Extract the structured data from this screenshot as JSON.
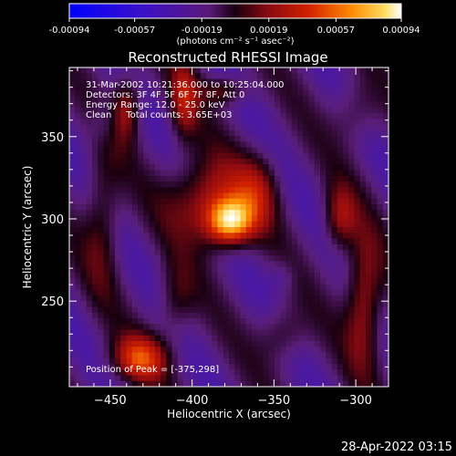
{
  "chart_data": {
    "type": "heatmap",
    "title": "Reconstructed RHESSI Image",
    "xlabel": "Heliocentric X (arcsec)",
    "ylabel": "Heliocentric Y (arcsec)",
    "xlim": [
      -475,
      -280
    ],
    "ylim": [
      198,
      392
    ],
    "x_ticks": [
      -450,
      -400,
      -350,
      -300
    ],
    "y_ticks": [
      250,
      300,
      350
    ],
    "colorbar": {
      "min": -0.00094,
      "max": 0.00094,
      "ticks": [
        "-0.00094",
        "-0.00057",
        "-0.00019",
        "0.00019",
        "0.00057",
        "0.00094"
      ],
      "unit_label": "(photons cm⁻² s⁻¹ asec⁻²)"
    },
    "annotations": {
      "time_range": "31-Mar-2002 10:21:36.000 to 10:25:04.000",
      "detectors": "Detectors: 3F 4F 5F 6F 7F 8F, Att 0",
      "energy_range": "Energy Range: 12.0 - 25.0 keV",
      "method_counts": "Clean     Total counts: 3.65E+03",
      "peak": "Position of Peak = [-375,298]"
    },
    "peak_position": [
      -375,
      298
    ],
    "sources": [
      {
        "x": -377,
        "y": 298,
        "sx": 10,
        "sy": 10,
        "amp": 1.0
      },
      {
        "x": -392,
        "y": 312,
        "sx": 16,
        "sy": 18,
        "amp": 0.55
      },
      {
        "x": -360,
        "y": 318,
        "sx": 10,
        "sy": 16,
        "amp": 0.4
      },
      {
        "x": -440,
        "y": 368,
        "sx": 6,
        "sy": 14,
        "amp": 0.5
      },
      {
        "x": -405,
        "y": 372,
        "sx": 6,
        "sy": 18,
        "amp": 0.45
      },
      {
        "x": -380,
        "y": 378,
        "sx": 10,
        "sy": 6,
        "amp": 0.4
      },
      {
        "x": -432,
        "y": 215,
        "sx": 12,
        "sy": 10,
        "amp": 0.65
      },
      {
        "x": -295,
        "y": 250,
        "sx": 8,
        "sy": 28,
        "amp": 0.55
      },
      {
        "x": -310,
        "y": 300,
        "sx": 7,
        "sy": 14,
        "amp": 0.45
      },
      {
        "x": -455,
        "y": 300,
        "sx": 8,
        "sy": 30,
        "amp": 0.35
      },
      {
        "x": -345,
        "y": 230,
        "sx": 10,
        "sy": 12,
        "amp": 0.3
      },
      {
        "x": -410,
        "y": 250,
        "sx": 8,
        "sy": 16,
        "amp": 0.3
      },
      {
        "x": -300,
        "y": 365,
        "sx": 10,
        "sy": 14,
        "amp": 0.25
      }
    ]
  },
  "footer": {
    "timestamp": "28-Apr-2022 03:15"
  },
  "colors": {
    "background": "#000000",
    "text": "#ffffff"
  }
}
